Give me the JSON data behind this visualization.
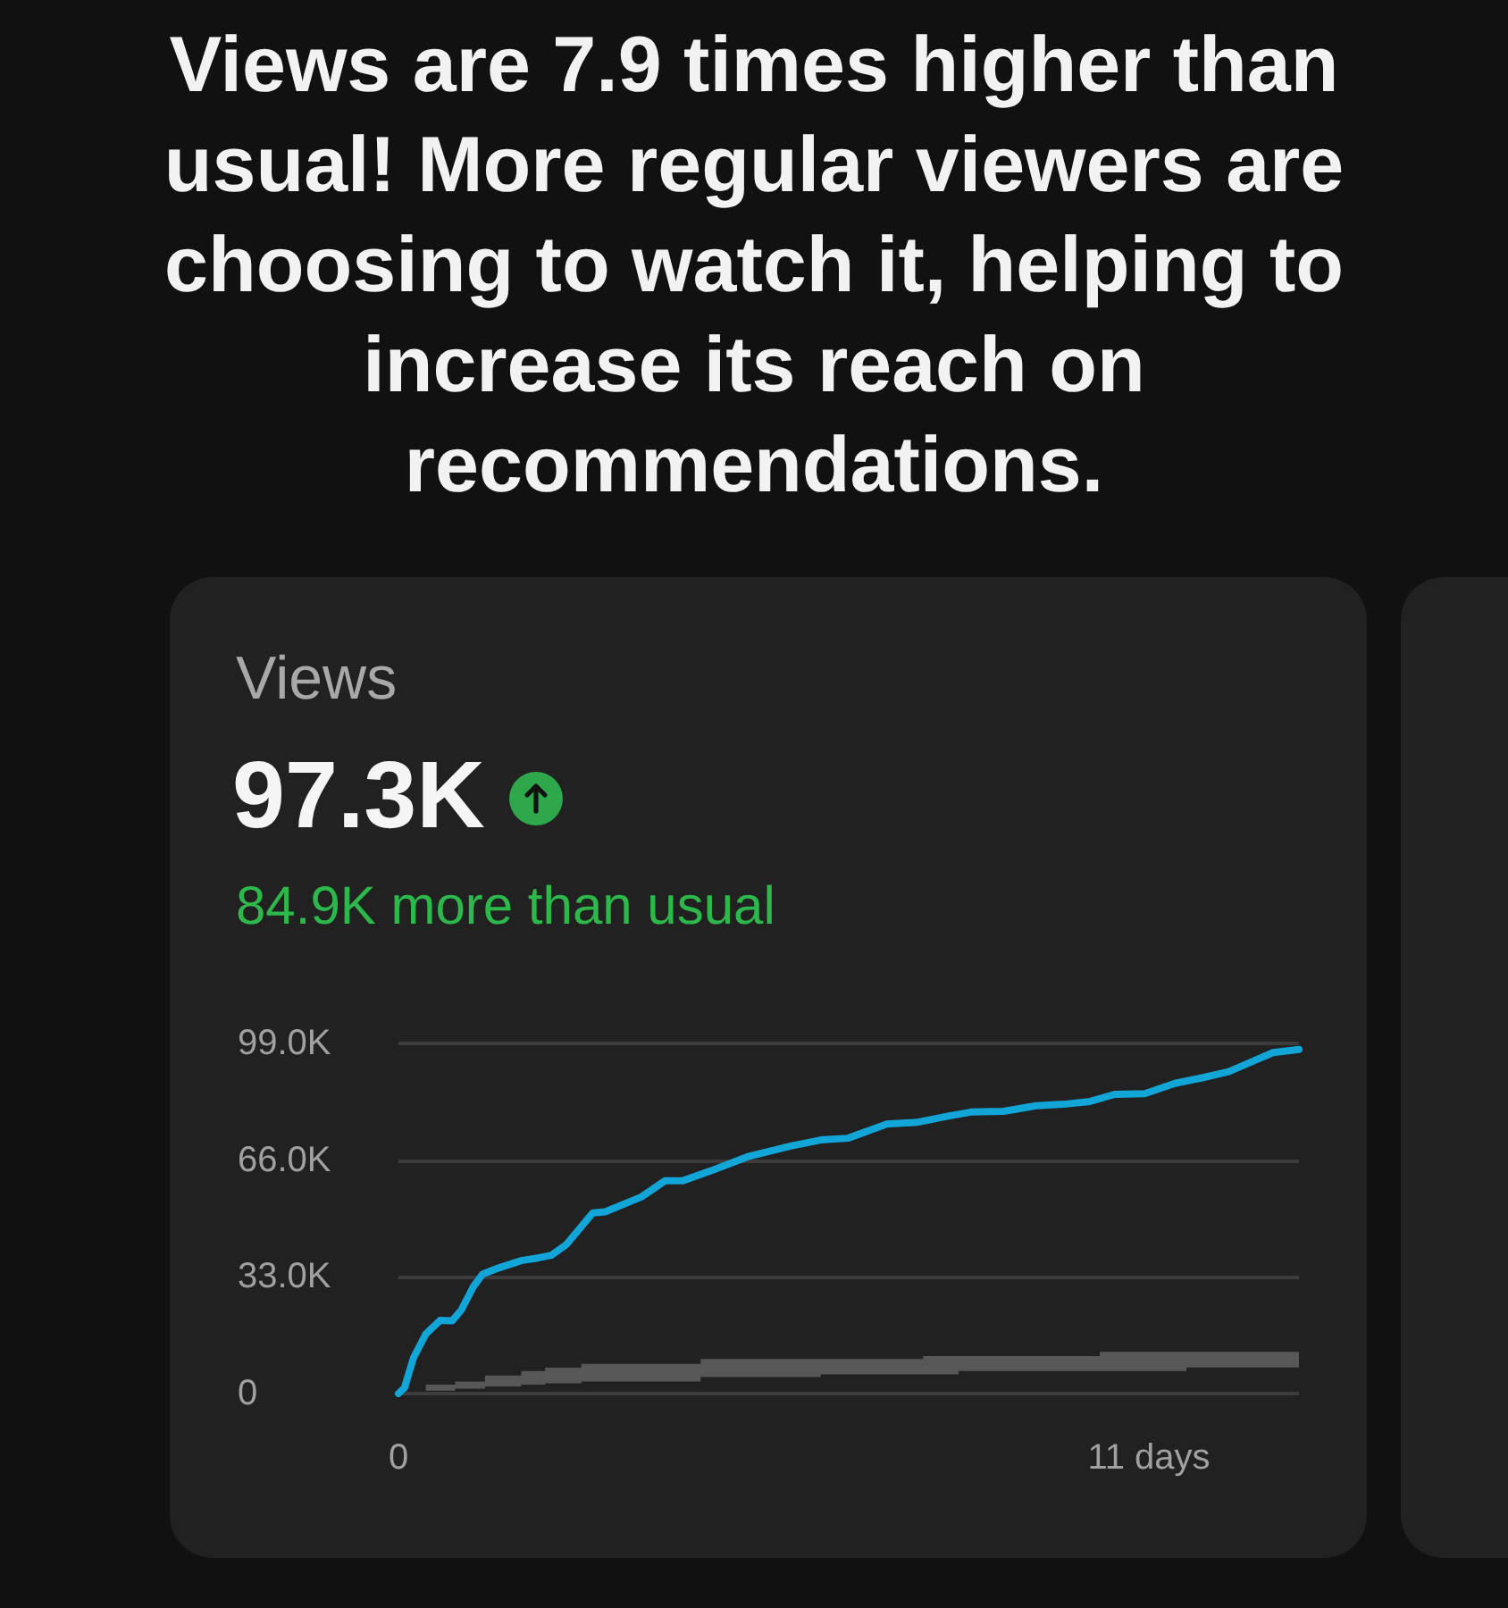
{
  "chart_data": {
    "type": "line",
    "title": "Views are 7.9 times higher than usual! More regular viewers are choosing to watch it, helping to increase its reach on recommendations.",
    "subtitle": "Views",
    "annotations": [
      "97.3K",
      "84.9K more than usual"
    ],
    "xlim": [
      0,
      13.2
    ],
    "xticks": [
      0,
      {
        "value": 11,
        "label": "11 days"
      }
    ],
    "ylim": [
      0,
      99000
    ],
    "yticks": [
      0,
      {
        "value": 33000,
        "label": "33.0K"
      },
      {
        "value": 66000,
        "label": "66.0K"
      },
      {
        "value": 99000,
        "label": "99.0K"
      }
    ],
    "grid": "y",
    "marker": "none",
    "line_style": "solid",
    "series": [
      {
        "type": "step",
        "color": "#575757",
        "x": [
          0,
          0.4,
          0.83,
          1.27,
          1.8,
          2.15,
          2.68,
          4.43,
          6.19,
          7.69,
          8.21,
          10.28,
          11.55,
          13.2
        ],
        "values": [
          null,
          null,
          null,
          null,
          null,
          null,
          null,
          null,
          null,
          null,
          null,
          null,
          null,
          null
        ],
        "lower": [
          0,
          800,
          1400,
          2000,
          2500,
          2900,
          3400,
          4700,
          5400,
          5400,
          6400,
          6400,
          7400,
          7400
        ],
        "upper": [
          0,
          2500,
          3400,
          5100,
          6400,
          7300,
          8400,
          9800,
          9800,
          10600,
          10600,
          11800,
          11800,
          11800
        ]
      },
      {
        "type": "line",
        "color": "#12a5d8",
        "x": [
          0,
          0.09,
          0.22,
          0.4,
          0.61,
          0.79,
          0.92,
          1.1,
          1.23,
          1.45,
          1.8,
          2.06,
          2.24,
          2.46,
          2.85,
          3.03,
          3.56,
          3.91,
          4.17,
          4.61,
          5.14,
          5.75,
          6.19,
          6.59,
          7.16,
          7.6,
          8.04,
          8.39,
          8.87,
          9.35,
          9.75,
          10.14,
          10.5,
          10.94,
          11.38,
          11.81,
          12.17,
          12.52,
          12.82,
          13.2
        ],
        "values": [
          0,
          1700,
          10100,
          16800,
          20700,
          20600,
          23600,
          30300,
          33700,
          35400,
          37600,
          38400,
          39100,
          42100,
          51100,
          51400,
          55600,
          60200,
          60200,
          63200,
          67100,
          70000,
          71700,
          72200,
          76200,
          76700,
          78400,
          79600,
          79800,
          81400,
          81800,
          82600,
          84600,
          84800,
          87700,
          89400,
          91000,
          93900,
          96400,
          97300
        ]
      }
    ]
  }
}
